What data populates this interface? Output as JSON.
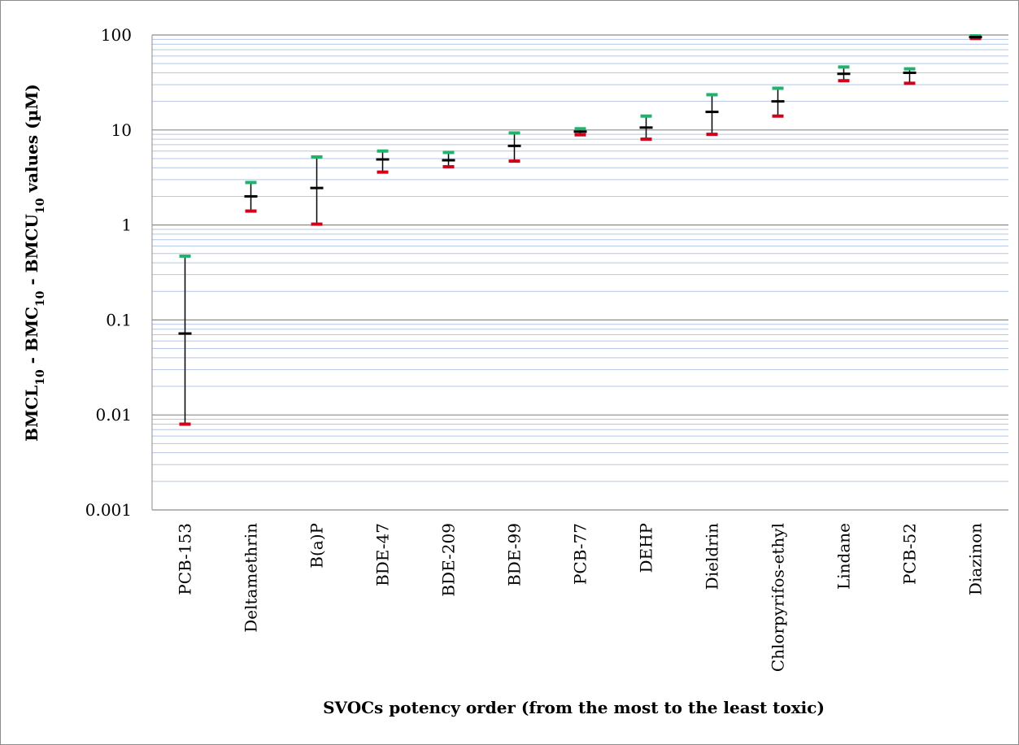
{
  "chart_data": {
    "type": "error-bar",
    "scale": "log",
    "ylim": [
      0.001,
      100
    ],
    "y_ticks": [
      "0.001",
      "0.01",
      "0.1",
      "1",
      "10",
      "100"
    ],
    "xlabel": "SVOCs potency order (from the most to the least toxic)",
    "ylabel": {
      "parts": [
        {
          "text": "BMCL",
          "sub": false
        },
        {
          "text": "10",
          "sub": true
        },
        {
          "text": " - BMC",
          "sub": false
        },
        {
          "text": "10",
          "sub": true
        },
        {
          "text": " - BMCU",
          "sub": false
        },
        {
          "text": "10",
          "sub": true
        },
        {
          "text": " values (µM)",
          "sub": false
        }
      ]
    },
    "categories": [
      "PCB-153",
      "Deltamethrin",
      "B(a)P",
      "BDE-47",
      "BDE-209",
      "BDE-99",
      "PCB-77",
      "DEHP",
      "Dieldrin",
      "Chlorpyrifos-ethyl",
      "Lindane",
      "PCB-52",
      "Diazinon"
    ],
    "bmcl": [
      0.008,
      1.4,
      1.02,
      3.6,
      4.1,
      4.7,
      8.9,
      8.0,
      9.0,
      14.0,
      33.0,
      31.0,
      92.0
    ],
    "bmc": [
      0.072,
      2.0,
      2.45,
      4.9,
      4.8,
      6.8,
      9.6,
      10.6,
      15.5,
      20.0,
      39.0,
      40.0,
      95.0
    ],
    "bmcu": [
      0.47,
      2.8,
      5.2,
      6.0,
      5.8,
      9.3,
      10.3,
      14.0,
      23.5,
      27.5,
      46.0,
      44.0,
      98.0
    ],
    "colors": {
      "bmcl": "#d0021b",
      "bmc": "#000000",
      "bmcu": "#1fb36b",
      "major_grid": "#8c8c8c",
      "minor_grid": "#b4c7e7"
    },
    "grid": true,
    "legend": "none"
  }
}
